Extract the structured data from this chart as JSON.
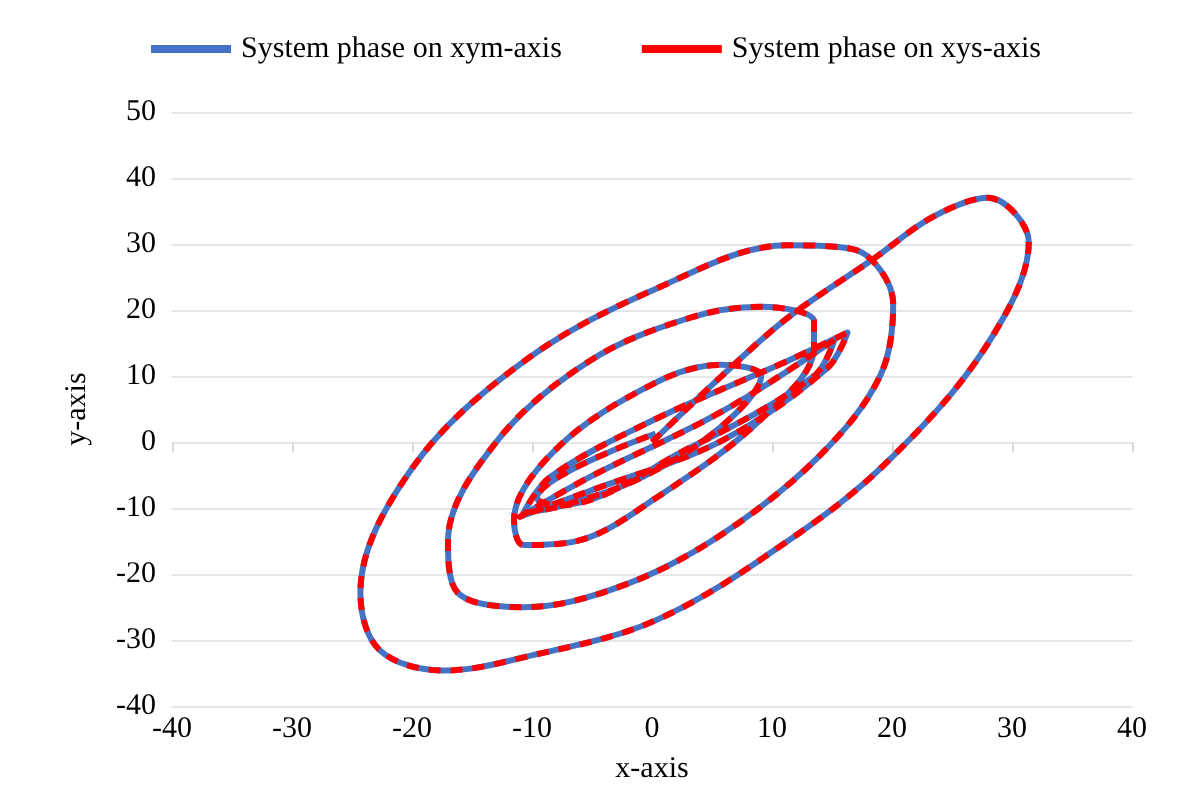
{
  "chart_data": {
    "type": "line",
    "xlabel": "x-axis",
    "ylabel": "y-axis",
    "x": [
      0,
      5.8,
      11.3,
      18.5,
      23.4,
      28,
      31.4,
      27.8,
      19.6,
      11.3,
      0.3,
      -10.7,
      -17.3,
      -22.7,
      -24.3,
      -20,
      -10.7,
      0.3,
      11.3,
      16.8,
      20.1,
      19,
      14,
      5.8,
      -2.4,
      -10.7,
      -16.2,
      -17,
      -12.9,
      -5.2,
      3.1,
      9.1,
      13.5,
      13.5,
      9.1,
      0.3,
      -6.3,
      -10.7,
      -11.5,
      -7.9,
      0.3,
      5.8,
      9.1,
      5.8,
      -0.8,
      -7.4,
      -10.7,
      -8.5,
      0.3,
      11.3,
      16.3,
      14.6,
      5.8,
      -5.2,
      -11,
      -5.2,
      5.8,
      15.2,
      13.5,
      3.1,
      -7.9,
      -9.6,
      0.3
    ],
    "series": [
      {
        "name": "System phase on xym-axis",
        "color": "#4472c4",
        "line_style": "solid",
        "values": [
          0,
          10,
          18.8,
          27.8,
          34.1,
          37,
          30.3,
          14.4,
          -3,
          -15,
          -27,
          -32.6,
          -34.6,
          -31.5,
          -22.8,
          -4,
          12.2,
          23.2,
          29.8,
          29.2,
          21,
          10,
          -2,
          -14,
          -21.7,
          -25,
          -22.8,
          -15,
          0.2,
          12.3,
          18.8,
          20.5,
          18.3,
          14.4,
          3.5,
          -8.5,
          -15,
          -15.6,
          -11.8,
          -0.9,
          9,
          11.7,
          10,
          2.4,
          -5.3,
          -9.6,
          -10.7,
          -5.3,
          3.5,
          12.3,
          16.6,
          11.2,
          0.2,
          -7.4,
          -11.3,
          -5.3,
          4.6,
          15.5,
          10,
          -0.9,
          -9.6,
          -8.5,
          1.3
        ]
      },
      {
        "name": "System phase on xys-axis",
        "color": "#ff0000",
        "line_style": "dashed",
        "values": [
          0,
          10,
          18.8,
          27.8,
          34.1,
          37,
          30.3,
          14.4,
          -3,
          -15,
          -27,
          -32.6,
          -34.6,
          -31.5,
          -22.8,
          -4,
          12.2,
          23.2,
          29.8,
          29.2,
          21,
          10,
          -2,
          -14,
          -21.7,
          -25,
          -22.8,
          -15,
          0.2,
          12.3,
          18.8,
          20.5,
          18.3,
          14.4,
          3.5,
          -8.5,
          -15,
          -15.6,
          -11.8,
          -0.9,
          9,
          11.7,
          10,
          2.4,
          -5.3,
          -9.6,
          -10.7,
          -5.3,
          3.5,
          12.3,
          16.6,
          11.2,
          0.2,
          -7.4,
          -11.3,
          -5.3,
          4.6,
          15.5,
          10,
          -0.9,
          -9.6,
          -8.5,
          1.3
        ]
      }
    ],
    "xlim": [
      -40,
      40
    ],
    "xticks": [
      -40,
      -30,
      -20,
      -10,
      0,
      10,
      20,
      30,
      40
    ],
    "ylim": [
      -40,
      50
    ],
    "yticks": [
      -40,
      -30,
      -20,
      -10,
      0,
      10,
      20,
      30,
      40,
      50
    ],
    "grid": "y",
    "legend": "top",
    "marker": "none"
  }
}
